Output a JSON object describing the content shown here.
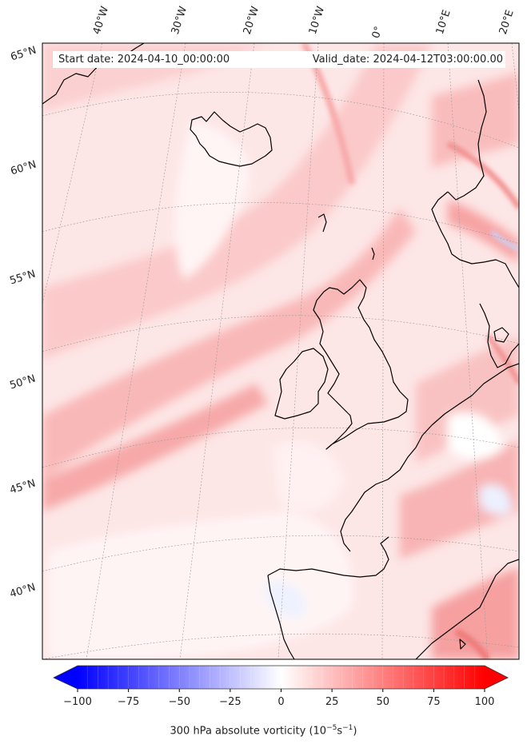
{
  "header": {
    "start_date": "Start date: 2024-04-10_00:00:00",
    "valid_date": "Valid_date: 2024-04-12T03:00:00.00"
  },
  "longitude_labels": [
    "40°W",
    "30°W",
    "20°W",
    "10°W",
    "0°",
    "10°E",
    "20°E"
  ],
  "latitude_labels": [
    "65°N",
    "60°N",
    "55°N",
    "50°N",
    "45°N",
    "40°N"
  ],
  "colorbar": {
    "ticks": [
      "−100",
      "−75",
      "−50",
      "−25",
      "0",
      "25",
      "50",
      "75",
      "100"
    ],
    "label_prefix": "300 hPa absolute vorticity (10",
    "label_exp1": "−5",
    "label_mid": "s",
    "label_exp2": "−1",
    "label_suffix": ")",
    "min_color": "#0000ff",
    "mid_color": "#ffffff",
    "max_color": "#ff0000",
    "extend": "both",
    "levels": 40
  },
  "map": {
    "field": "300 hPa absolute vorticity",
    "projection": "conic",
    "coastline_color": "#000000",
    "gridline_color": "#9a9a9a"
  }
}
